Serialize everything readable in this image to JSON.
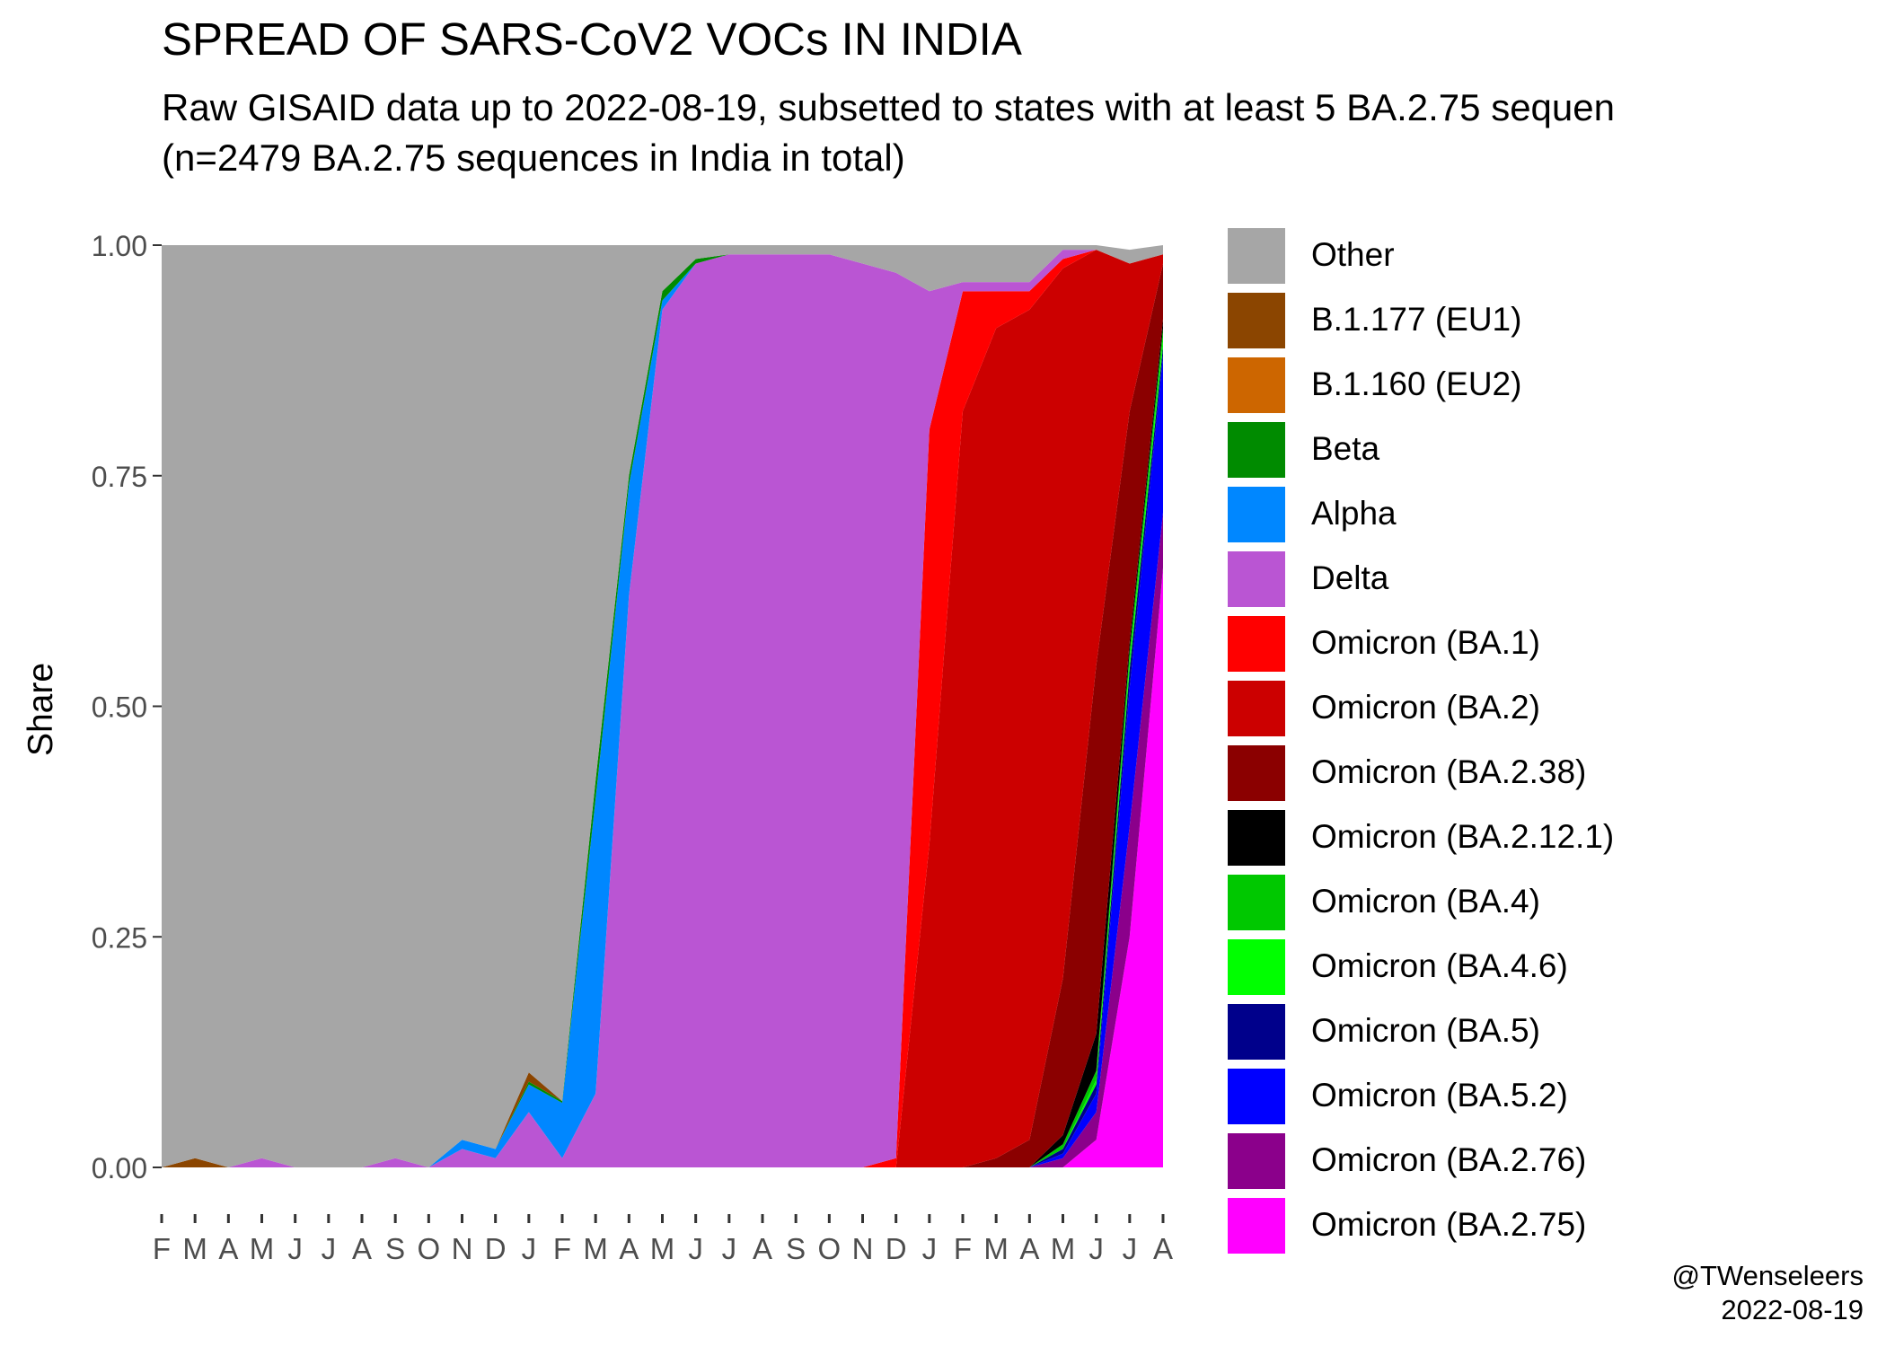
{
  "chart_data": {
    "type": "area",
    "stacked": true,
    "normalized": true,
    "title": "SPREAD OF SARS-CoV2 VOCs IN INDIA",
    "subtitle_lines": [
      "Raw GISAID data up to 2022-08-19, subsetted to states with at least 5 BA.2.75 sequen",
      "(n=2479 BA.2.75 sequences in India in total)"
    ],
    "ylabel": "Share",
    "xlabel": "",
    "ylim": [
      0,
      1
    ],
    "y_ticks": [
      "0.00",
      "0.25",
      "0.50",
      "0.75",
      "1.00"
    ],
    "x_tick_labels": [
      "F",
      "M",
      "A",
      "M",
      "J",
      "J",
      "A",
      "S",
      "O",
      "N",
      "D",
      "J",
      "F",
      "M",
      "A",
      "M",
      "J",
      "J",
      "A",
      "S",
      "O",
      "N",
      "D",
      "J",
      "F",
      "M",
      "A",
      "M",
      "J",
      "J",
      "A"
    ],
    "x": [
      "2020-02",
      "2020-03",
      "2020-04",
      "2020-05",
      "2020-06",
      "2020-07",
      "2020-08",
      "2020-09",
      "2020-10",
      "2020-11",
      "2020-12",
      "2021-01",
      "2021-02",
      "2021-03",
      "2021-04",
      "2021-05",
      "2021-06",
      "2021-07",
      "2021-08",
      "2021-09",
      "2021-10",
      "2021-11",
      "2021-12",
      "2022-01",
      "2022-02",
      "2022-03",
      "2022-04",
      "2022-05",
      "2022-06",
      "2022-07",
      "2022-08"
    ],
    "legend_position": "right",
    "grid": false,
    "series": [
      {
        "name": "Omicron (BA.2.75)",
        "color": "#FF00FF",
        "values": [
          0,
          0,
          0,
          0,
          0,
          0,
          0,
          0,
          0,
          0,
          0,
          0,
          0,
          0,
          0,
          0,
          0,
          0,
          0,
          0,
          0,
          0,
          0,
          0,
          0,
          0,
          0,
          0,
          0.03,
          0.25,
          0.65
        ]
      },
      {
        "name": "Omicron (BA.2.76)",
        "color": "#8B008B",
        "values": [
          0,
          0,
          0,
          0,
          0,
          0,
          0,
          0,
          0,
          0,
          0,
          0,
          0,
          0,
          0,
          0,
          0,
          0,
          0,
          0,
          0,
          0,
          0,
          0,
          0,
          0,
          0,
          0.01,
          0.03,
          0.12,
          0.06
        ]
      },
      {
        "name": "Omicron (BA.5.2)",
        "color": "#0000FF",
        "values": [
          0,
          0,
          0,
          0,
          0,
          0,
          0,
          0,
          0,
          0,
          0,
          0,
          0,
          0,
          0,
          0,
          0,
          0,
          0,
          0,
          0,
          0,
          0,
          0,
          0,
          0,
          0,
          0.005,
          0.02,
          0.15,
          0.17
        ]
      },
      {
        "name": "Omicron (BA.5)",
        "color": "#00008B",
        "values": [
          0,
          0,
          0,
          0,
          0,
          0,
          0,
          0,
          0,
          0,
          0,
          0,
          0,
          0,
          0,
          0,
          0,
          0,
          0,
          0,
          0,
          0,
          0,
          0,
          0,
          0,
          0,
          0.005,
          0.01,
          0.02,
          0.01
        ]
      },
      {
        "name": "Omicron (BA.4.6)",
        "color": "#00FF00",
        "values": [
          0,
          0,
          0,
          0,
          0,
          0,
          0,
          0,
          0,
          0,
          0,
          0,
          0,
          0,
          0,
          0,
          0,
          0,
          0,
          0,
          0,
          0,
          0,
          0,
          0,
          0,
          0,
          0,
          0.005,
          0.01,
          0.01
        ]
      },
      {
        "name": "Omicron (BA.4)",
        "color": "#00C800",
        "values": [
          0,
          0,
          0,
          0,
          0,
          0,
          0,
          0,
          0,
          0,
          0,
          0,
          0,
          0,
          0,
          0,
          0,
          0,
          0,
          0,
          0,
          0,
          0,
          0,
          0,
          0,
          0,
          0.005,
          0.01,
          0.01,
          0.01
        ]
      },
      {
        "name": "Omicron (BA.2.12.1)",
        "color": "#000000",
        "values": [
          0,
          0,
          0,
          0,
          0,
          0,
          0,
          0,
          0,
          0,
          0,
          0,
          0,
          0,
          0,
          0,
          0,
          0,
          0,
          0,
          0,
          0,
          0,
          0,
          0,
          0,
          0,
          0.01,
          0.04,
          0.01,
          0.01
        ]
      },
      {
        "name": "Omicron (BA.2.38)",
        "color": "#8B0000",
        "values": [
          0,
          0,
          0,
          0,
          0,
          0,
          0,
          0,
          0,
          0,
          0,
          0,
          0,
          0,
          0,
          0,
          0,
          0,
          0,
          0,
          0,
          0,
          0,
          0,
          0,
          0.01,
          0.03,
          0.17,
          0.4,
          0.25,
          0.06
        ]
      },
      {
        "name": "Omicron (BA.2)",
        "color": "#CC0000",
        "values": [
          0,
          0,
          0,
          0,
          0,
          0,
          0,
          0,
          0,
          0,
          0,
          0,
          0,
          0,
          0,
          0,
          0,
          0,
          0,
          0,
          0,
          0,
          0,
          0.35,
          0.82,
          0.9,
          0.9,
          0.77,
          0.45,
          0.16,
          0.01
        ]
      },
      {
        "name": "Omicron (BA.1)",
        "color": "#FF0000",
        "values": [
          0,
          0,
          0,
          0,
          0,
          0,
          0,
          0,
          0,
          0,
          0,
          0,
          0,
          0,
          0,
          0,
          0,
          0,
          0,
          0,
          0,
          0,
          0.01,
          0.45,
          0.13,
          0.04,
          0.02,
          0.01,
          0,
          0,
          0
        ]
      },
      {
        "name": "Delta",
        "color": "#BA55D3",
        "values": [
          0,
          0,
          0,
          0.01,
          0,
          0,
          0,
          0.01,
          0,
          0.02,
          0.01,
          0.06,
          0.01,
          0.08,
          0.62,
          0.93,
          0.98,
          0.99,
          0.99,
          0.99,
          0.99,
          0.98,
          0.96,
          0.15,
          0.01,
          0.01,
          0.01,
          0.01,
          0,
          0,
          0
        ]
      },
      {
        "name": "Alpha",
        "color": "#0087FF",
        "values": [
          0,
          0,
          0,
          0,
          0,
          0,
          0,
          0,
          0,
          0.01,
          0.01,
          0.03,
          0.06,
          0.32,
          0.12,
          0.01,
          0,
          0,
          0,
          0,
          0,
          0,
          0,
          0,
          0,
          0,
          0,
          0,
          0,
          0,
          0
        ]
      },
      {
        "name": "Beta",
        "color": "#008B00",
        "values": [
          0,
          0,
          0,
          0,
          0,
          0,
          0,
          0,
          0,
          0,
          0,
          0.003,
          0.002,
          0.02,
          0.01,
          0.01,
          0.005,
          0,
          0,
          0,
          0,
          0,
          0,
          0,
          0,
          0,
          0,
          0,
          0,
          0,
          0
        ]
      },
      {
        "name": "B.1.160 (EU2)",
        "color": "#CD6600",
        "values": [
          0,
          0,
          0,
          0,
          0,
          0,
          0,
          0,
          0,
          0,
          0,
          0,
          0,
          0,
          0,
          0,
          0,
          0,
          0,
          0,
          0,
          0,
          0,
          0,
          0,
          0,
          0,
          0,
          0,
          0,
          0
        ]
      },
      {
        "name": "B.1.177 (EU1)",
        "color": "#8B4500",
        "values": [
          0,
          0.01,
          0,
          0,
          0,
          0,
          0,
          0,
          0,
          0,
          0,
          0.01,
          0,
          0,
          0,
          0,
          0,
          0,
          0,
          0,
          0,
          0,
          0,
          0,
          0,
          0,
          0,
          0,
          0,
          0,
          0
        ]
      },
      {
        "name": "Other",
        "color": "#A6A6A6",
        "values": [
          1,
          0.99,
          1,
          0.99,
          1,
          1,
          1,
          0.99,
          1,
          0.97,
          0.98,
          0.897,
          0.928,
          0.58,
          0.25,
          0.05,
          0.015,
          0.01,
          0.01,
          0.01,
          0.01,
          0.02,
          0.03,
          0.05,
          0.04,
          0.04,
          0.04,
          0.02,
          0.025,
          0.015,
          0.015
        ]
      }
    ]
  },
  "legend": {
    "items": [
      {
        "label": "Other",
        "color": "#A6A6A6"
      },
      {
        "label": "B.1.177 (EU1)",
        "color": "#8B4500"
      },
      {
        "label": "B.1.160 (EU2)",
        "color": "#CD6600"
      },
      {
        "label": "Beta",
        "color": "#008B00"
      },
      {
        "label": "Alpha",
        "color": "#0087FF"
      },
      {
        "label": "Delta",
        "color": "#BA55D3"
      },
      {
        "label": "Omicron (BA.1)",
        "color": "#FF0000"
      },
      {
        "label": "Omicron (BA.2)",
        "color": "#CC0000"
      },
      {
        "label": "Omicron (BA.2.38)",
        "color": "#8B0000"
      },
      {
        "label": "Omicron (BA.2.12.1)",
        "color": "#000000"
      },
      {
        "label": "Omicron (BA.4)",
        "color": "#00C800"
      },
      {
        "label": "Omicron (BA.4.6)",
        "color": "#00FF00"
      },
      {
        "label": "Omicron (BA.5)",
        "color": "#00008B"
      },
      {
        "label": "Omicron (BA.5.2)",
        "color": "#0000FF"
      },
      {
        "label": "Omicron (BA.2.76)",
        "color": "#8B008B"
      },
      {
        "label": "Omicron (BA.2.75)",
        "color": "#FF00FF"
      }
    ]
  },
  "caption": {
    "handle": "@TWenseleers",
    "date": "2022-08-19"
  }
}
